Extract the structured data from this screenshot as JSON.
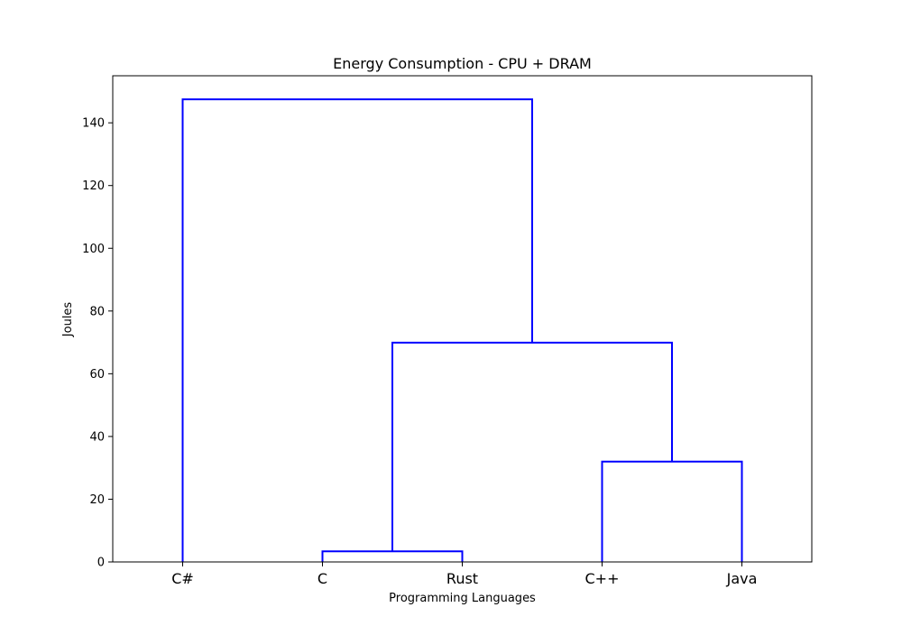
{
  "chart_data": {
    "type": "dendrogram",
    "title": "Energy Consumption - CPU + DRAM",
    "xlabel": "Programming Languages",
    "ylabel": "Joules",
    "ylim": [
      0,
      155
    ],
    "yticks": [
      0,
      20,
      40,
      60,
      80,
      100,
      120,
      140
    ],
    "leaves": [
      "C#",
      "C",
      "Rust",
      "C++",
      "Java"
    ],
    "merges": [
      {
        "left": "C",
        "right": "Rust",
        "height": 3.4
      },
      {
        "left": "C++",
        "right": "Java",
        "height": 32.0
      },
      {
        "left": "C, Rust",
        "right": "C++, Java",
        "height": 69.9
      },
      {
        "left": "C#",
        "right": "C, Rust, C++, Java",
        "height": 147.5
      }
    ],
    "links": [
      {
        "x": [
          0,
          0,
          2.5,
          2.5
        ],
        "y": [
          0,
          147.5,
          147.5,
          69.9
        ]
      },
      {
        "x": [
          1,
          1,
          2,
          2
        ],
        "y": [
          0,
          3.4,
          3.4,
          0
        ]
      },
      {
        "x": [
          1.5,
          1.5,
          3.5,
          3.5
        ],
        "y": [
          3.4,
          69.9,
          69.9,
          32.0
        ]
      },
      {
        "x": [
          3,
          3,
          4,
          4
        ],
        "y": [
          0,
          32.0,
          32.0,
          0
        ]
      }
    ],
    "link_color": "#0000ff",
    "grid": false
  }
}
